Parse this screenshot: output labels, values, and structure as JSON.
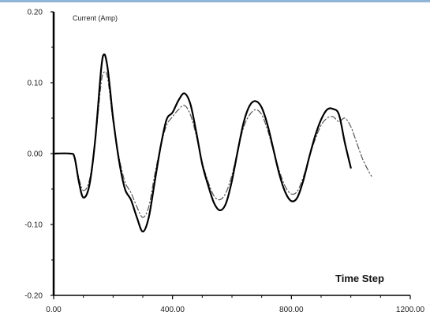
{
  "chart_data": {
    "type": "line",
    "ylabel": "Current (Amp)",
    "xlabel": "Time Step",
    "xlim": [
      0,
      1200
    ],
    "ylim": [
      -0.2,
      0.2
    ],
    "x_ticks": [
      0,
      400,
      800,
      1200
    ],
    "x_tick_labels": [
      "0.00",
      "400.00",
      "800.00",
      "1200.00"
    ],
    "y_ticks": [
      -0.2,
      -0.1,
      0,
      0.1,
      0.2
    ],
    "y_tick_labels": [
      "-0.20",
      "-0.10",
      "0.00",
      "0.10",
      "0.20"
    ],
    "grid": false,
    "series": [
      {
        "style": "solid",
        "color": "#000000",
        "x": [
          0,
          55,
          70,
          85,
          100,
          120,
          140,
          160,
          170,
          180,
          190,
          200,
          220,
          240,
          260,
          280,
          300,
          320,
          340,
          360,
          380,
          400,
          420,
          440,
          460,
          480,
          500,
          520,
          540,
          560,
          580,
          600,
          620,
          640,
          660,
          680,
          700,
          720,
          740,
          760,
          780,
          800,
          820,
          840,
          860,
          880,
          900,
          920,
          940,
          960,
          980,
          1000
        ],
        "y": [
          0,
          0,
          -0.005,
          -0.04,
          -0.062,
          -0.045,
          0.02,
          0.12,
          0.14,
          0.125,
          0.09,
          0.05,
          -0.01,
          -0.05,
          -0.065,
          -0.09,
          -0.11,
          -0.09,
          -0.04,
          0.01,
          0.048,
          0.058,
          0.075,
          0.085,
          0.07,
          0.03,
          -0.015,
          -0.045,
          -0.07,
          -0.08,
          -0.07,
          -0.038,
          0.005,
          0.045,
          0.068,
          0.074,
          0.065,
          0.04,
          0.005,
          -0.03,
          -0.055,
          -0.067,
          -0.062,
          -0.038,
          -0.005,
          0.025,
          0.048,
          0.062,
          0.063,
          0.055,
          0.015,
          -0.02
        ]
      },
      {
        "style": "dash-dot",
        "color": "#555555",
        "x": [
          0,
          55,
          70,
          85,
          100,
          120,
          140,
          160,
          170,
          180,
          190,
          200,
          220,
          240,
          260,
          280,
          300,
          320,
          340,
          360,
          380,
          400,
          420,
          440,
          460,
          480,
          500,
          520,
          540,
          560,
          580,
          600,
          620,
          640,
          660,
          680,
          700,
          720,
          740,
          760,
          780,
          800,
          820,
          840,
          860,
          880,
          900,
          920,
          940,
          960,
          980,
          1000,
          1020,
          1040,
          1060,
          1070
        ],
        "y": [
          0,
          0,
          -0.004,
          -0.035,
          -0.052,
          -0.038,
          0.018,
          0.1,
          0.115,
          0.11,
          0.08,
          0.045,
          -0.005,
          -0.04,
          -0.055,
          -0.075,
          -0.09,
          -0.075,
          -0.03,
          0.01,
          0.04,
          0.052,
          0.062,
          0.068,
          0.055,
          0.025,
          -0.012,
          -0.04,
          -0.06,
          -0.065,
          -0.055,
          -0.03,
          0.005,
          0.038,
          0.055,
          0.062,
          0.055,
          0.033,
          0.003,
          -0.025,
          -0.047,
          -0.057,
          -0.053,
          -0.033,
          -0.005,
          0.02,
          0.04,
          0.05,
          0.052,
          0.045,
          0.05,
          0.038,
          0.015,
          -0.008,
          -0.025,
          -0.032
        ]
      }
    ]
  }
}
